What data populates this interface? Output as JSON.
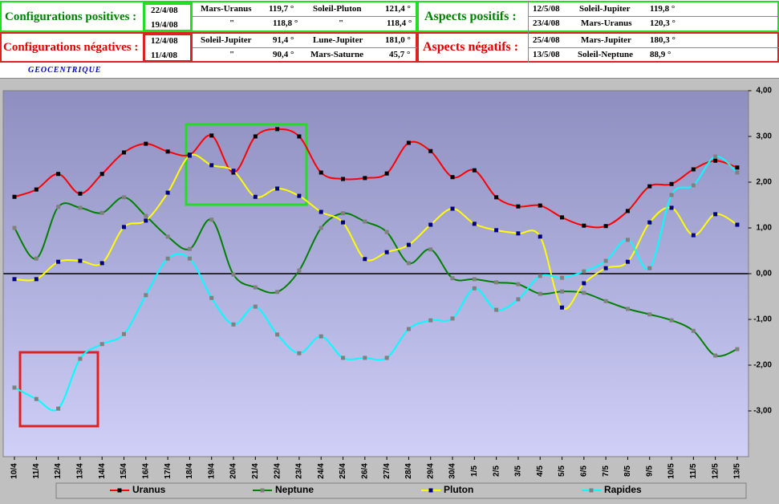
{
  "header": {
    "positive": {
      "label": "Configurations positives :",
      "dates": [
        "22/4/08",
        "19/4/08"
      ],
      "pairs": [
        [
          "Mars-Uranus",
          "119,7 °",
          "Soleil-Pluton",
          "121,4 °"
        ],
        [
          "\"",
          "118,8 °",
          "\"",
          "118,4 °"
        ]
      ]
    },
    "negative": {
      "label": "Configurations négatives :",
      "dates": [
        "12/4/08",
        "11/4/08"
      ],
      "pairs": [
        [
          "Soleil-Jupiter",
          "91,4 °",
          "Lune-Jupiter",
          "181,0 °"
        ],
        [
          "\"",
          "90,4 °",
          "Mars-Saturne",
          "45,7 °"
        ]
      ]
    },
    "aspects_positive": {
      "label": "Aspects positifs :",
      "rows": [
        [
          "12/5/08",
          "Soleil-Jupiter",
          "119,8 °"
        ],
        [
          "23/4/08",
          "Mars-Uranus",
          "120,3 °"
        ]
      ]
    },
    "aspects_negative": {
      "label": "Aspects négatifs :",
      "rows": [
        [
          "25/4/08",
          "Mars-Jupiter",
          "180,3 °"
        ],
        [
          "13/5/08",
          "Soleil-Neptune",
          "88,9 °"
        ]
      ]
    },
    "mode": "GEOCENTRIQUE"
  },
  "chart_data": {
    "type": "line",
    "categories": [
      "10/4",
      "11/4",
      "12/4",
      "13/4",
      "14/4",
      "15/4",
      "16/4",
      "17/4",
      "18/4",
      "19/4",
      "20/4",
      "21/4",
      "22/4",
      "23/4",
      "24/4",
      "25/4",
      "26/4",
      "27/4",
      "28/4",
      "29/4",
      "30/4",
      "1/5",
      "2/5",
      "3/5",
      "4/5",
      "5/5",
      "6/5",
      "7/5",
      "8/5",
      "9/5",
      "10/5",
      "11/5",
      "12/5",
      "13/5"
    ],
    "series": [
      {
        "name": "Uranus",
        "color": "#ff0000",
        "marker_color": "#000000",
        "values": [
          1.68,
          1.84,
          2.18,
          1.75,
          2.18,
          2.65,
          2.84,
          2.67,
          2.6,
          3.02,
          2.21,
          3.0,
          3.16,
          3.0,
          2.21,
          2.07,
          2.09,
          2.19,
          2.86,
          2.68,
          2.11,
          2.26,
          1.67,
          1.47,
          1.49,
          1.23,
          1.05,
          1.04,
          1.37,
          1.91,
          1.96,
          2.28,
          2.47,
          2.32
        ]
      },
      {
        "name": "Neptune",
        "color": "#008000",
        "marker_color": "#808080",
        "values": [
          1.0,
          0.33,
          1.46,
          1.44,
          1.33,
          1.67,
          1.26,
          0.81,
          0.54,
          1.18,
          -0.02,
          -0.3,
          -0.4,
          0.07,
          1.0,
          1.32,
          1.14,
          0.91,
          0.23,
          0.53,
          -0.1,
          -0.12,
          -0.19,
          -0.23,
          -0.44,
          -0.39,
          -0.42,
          -0.6,
          -0.77,
          -0.89,
          -1.02,
          -1.25,
          -1.79,
          -1.65
        ]
      },
      {
        "name": "Pluton",
        "color": "#ffff00",
        "marker_color": "#000080",
        "values": [
          -0.12,
          -0.12,
          0.26,
          0.28,
          0.23,
          1.02,
          1.16,
          1.77,
          2.58,
          2.37,
          2.25,
          1.68,
          1.86,
          1.7,
          1.35,
          1.12,
          0.32,
          0.47,
          0.63,
          1.07,
          1.42,
          1.09,
          0.95,
          0.88,
          0.81,
          -0.74,
          -0.21,
          0.12,
          0.26,
          1.12,
          1.44,
          0.84,
          1.3,
          1.07
        ]
      },
      {
        "name": "Rapides",
        "color": "#00ffff",
        "marker_color": "#808080",
        "values": [
          -2.49,
          -2.74,
          -2.95,
          -1.86,
          -1.54,
          -1.32,
          -0.47,
          0.33,
          0.33,
          -0.53,
          -1.11,
          -0.72,
          -1.33,
          -1.74,
          -1.37,
          -1.84,
          -1.84,
          -1.84,
          -1.21,
          -1.02,
          -0.98,
          -0.32,
          -0.79,
          -0.56,
          -0.05,
          -0.09,
          0.05,
          0.28,
          0.74,
          0.12,
          1.72,
          1.93,
          2.56,
          2.21
        ]
      }
    ],
    "ylim": [
      -4,
      4
    ],
    "yticks": [
      {
        "value": 4,
        "label": "4,00"
      },
      {
        "value": 3,
        "label": "3,00"
      },
      {
        "value": 2,
        "label": "2,00"
      },
      {
        "value": 1,
        "label": "1,00"
      },
      {
        "value": 0,
        "label": "0,00"
      },
      {
        "value": -1,
        "label": "-1,00"
      },
      {
        "value": -2,
        "label": "-2,00"
      },
      {
        "value": -3,
        "label": "-3,00"
      }
    ],
    "smooth": true
  }
}
